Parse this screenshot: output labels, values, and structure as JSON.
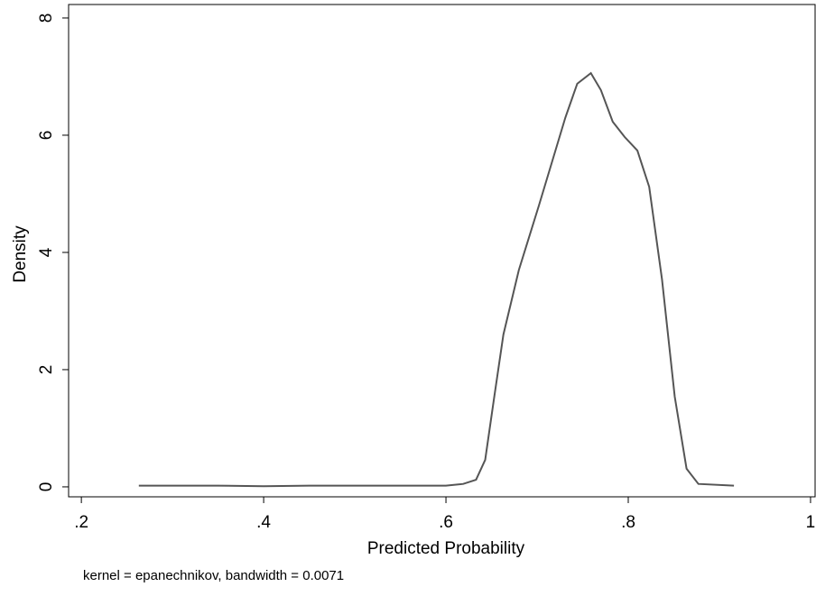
{
  "chart_data": {
    "type": "line",
    "x_label": "Predicted Probability",
    "y_label": "Density",
    "note": "kernel = epanechnikov, bandwidth = 0.0071",
    "x": [
      0.263,
      0.35,
      0.4,
      0.45,
      0.5,
      0.55,
      0.6,
      0.619,
      0.633,
      0.643,
      0.653,
      0.663,
      0.68,
      0.702,
      0.731,
      0.744,
      0.759,
      0.77,
      0.783,
      0.796,
      0.81,
      0.823,
      0.837,
      0.851,
      0.864,
      0.877,
      0.916
    ],
    "series": [
      {
        "name": "Density",
        "color": "#555555",
        "values": [
          0.02,
          0.02,
          0.01,
          0.02,
          0.02,
          0.02,
          0.02,
          0.05,
          0.12,
          0.46,
          1.54,
          2.6,
          3.7,
          4.8,
          6.3,
          6.88,
          7.06,
          6.77,
          6.23,
          5.97,
          5.74,
          5.12,
          3.54,
          1.54,
          0.31,
          0.05,
          0.02
        ]
      }
    ],
    "xlim": [
      0.186,
      1.005
    ],
    "ylim": [
      -0.17,
      8.23
    ],
    "xticks": [
      {
        "value": 0.2,
        "label": ".2"
      },
      {
        "value": 0.4,
        "label": ".4"
      },
      {
        "value": 0.6,
        "label": ".6"
      },
      {
        "value": 0.8,
        "label": ".8"
      },
      1
    ],
    "yticks": [
      0,
      2,
      4,
      6,
      8
    ]
  }
}
